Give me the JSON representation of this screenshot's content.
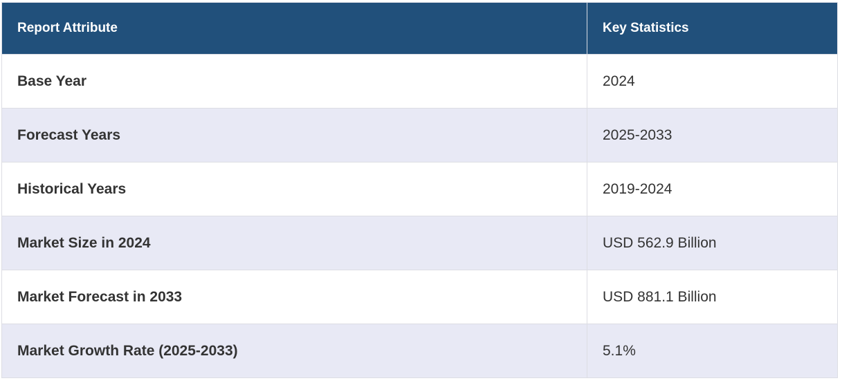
{
  "table": {
    "header": [
      "Report Attribute",
      "Key Statistics"
    ],
    "rows": [
      [
        "Base Year",
        "2024"
      ],
      [
        "Forecast Years",
        "2025-2033"
      ],
      [
        "Historical Years",
        "2019-2024"
      ],
      [
        "Market Size in 2024",
        "USD 562.9 Billion"
      ],
      [
        "Market Forecast in 2033",
        "USD 881.1 Billion"
      ],
      [
        "Market Growth Rate (2025-2033)",
        "5.1%"
      ]
    ]
  }
}
